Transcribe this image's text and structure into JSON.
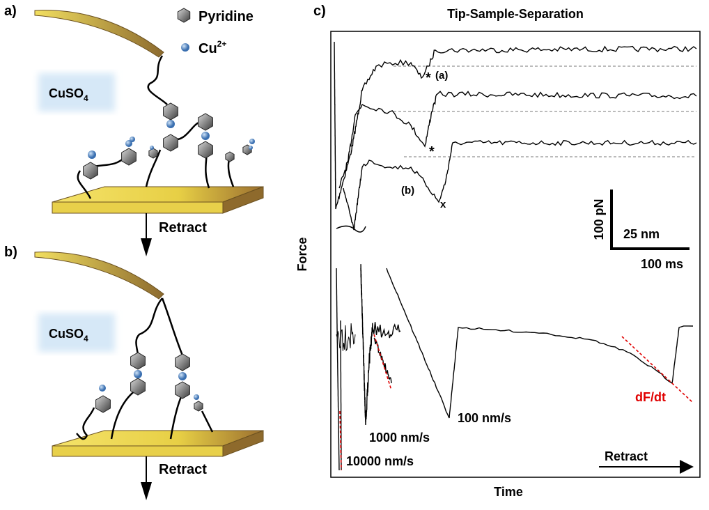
{
  "panel_a": {
    "label": "a)",
    "legend": [
      {
        "label": "Pyridine"
      },
      {
        "label": "Cu",
        "sup": "2+"
      }
    ],
    "salt": {
      "base": "CuSO",
      "sub": "4"
    },
    "action": "Retract"
  },
  "panel_b": {
    "label": "b)",
    "salt": {
      "base": "CuSO",
      "sub": "4"
    },
    "action": "Retract"
  },
  "panel_c": {
    "label": "c)",
    "title": "Tip-Sample-Separation",
    "y_label": "Force",
    "x_label": "Time",
    "annotations": [
      "*",
      "(a)",
      "*",
      "(b)",
      "x"
    ],
    "scale_bar": {
      "force": "100 pN",
      "distance": "25 nm",
      "time": "100 ms"
    },
    "rates": [
      "10000 nm/s",
      "1000 nm/s",
      "100 nm/s"
    ],
    "slope_label": "dF/dt",
    "action": "Retract"
  }
}
